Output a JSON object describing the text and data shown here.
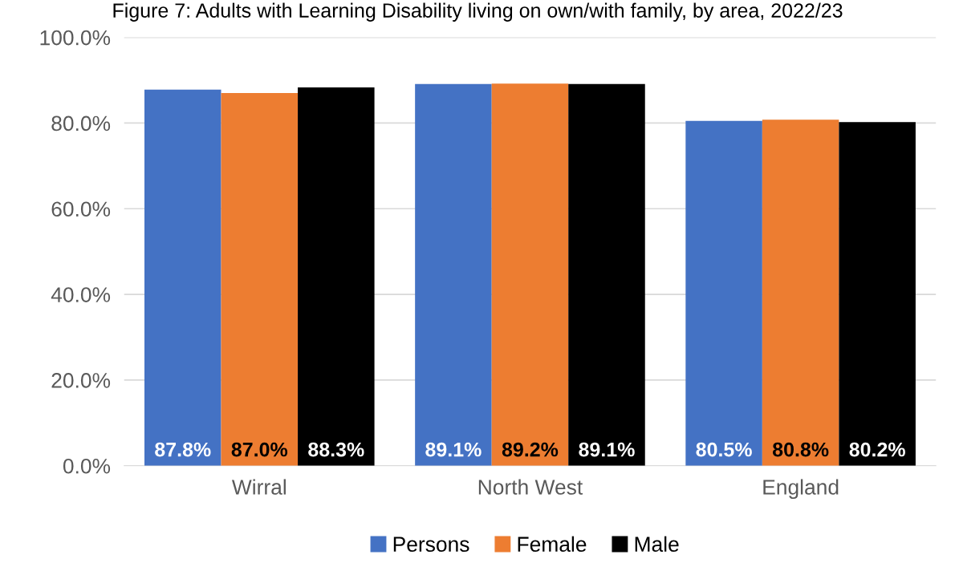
{
  "chart_data": {
    "type": "bar",
    "title": "Figure 7: Adults with Learning Disability living on own/with family, by area, 2022/23",
    "categories": [
      "Wirral",
      "North West",
      "England"
    ],
    "series": [
      {
        "name": "Persons",
        "color": "#4472c4",
        "values": [
          87.8,
          89.1,
          80.5
        ],
        "value_labels": [
          "87.8%",
          "89.1%",
          "80.5%"
        ]
      },
      {
        "name": "Female",
        "color": "#ed7d31",
        "values": [
          87.0,
          89.2,
          80.8
        ],
        "value_labels": [
          "87.0%",
          "89.2%",
          "80.8%"
        ]
      },
      {
        "name": "Male",
        "color": "#000000",
        "values": [
          88.3,
          89.1,
          80.2
        ],
        "value_labels": [
          "88.3%",
          "89.1%",
          "80.2%"
        ]
      }
    ],
    "ylim": [
      0,
      100
    ],
    "yticks": [
      {
        "value": 0,
        "label": "0.0%"
      },
      {
        "value": 20,
        "label": "20.0%"
      },
      {
        "value": 40,
        "label": "40.0%"
      },
      {
        "value": 60,
        "label": "60.0%"
      },
      {
        "value": 80,
        "label": "80.0%"
      },
      {
        "value": 100,
        "label": "100.0%"
      }
    ],
    "grid": "y",
    "legend": "bottom"
  }
}
